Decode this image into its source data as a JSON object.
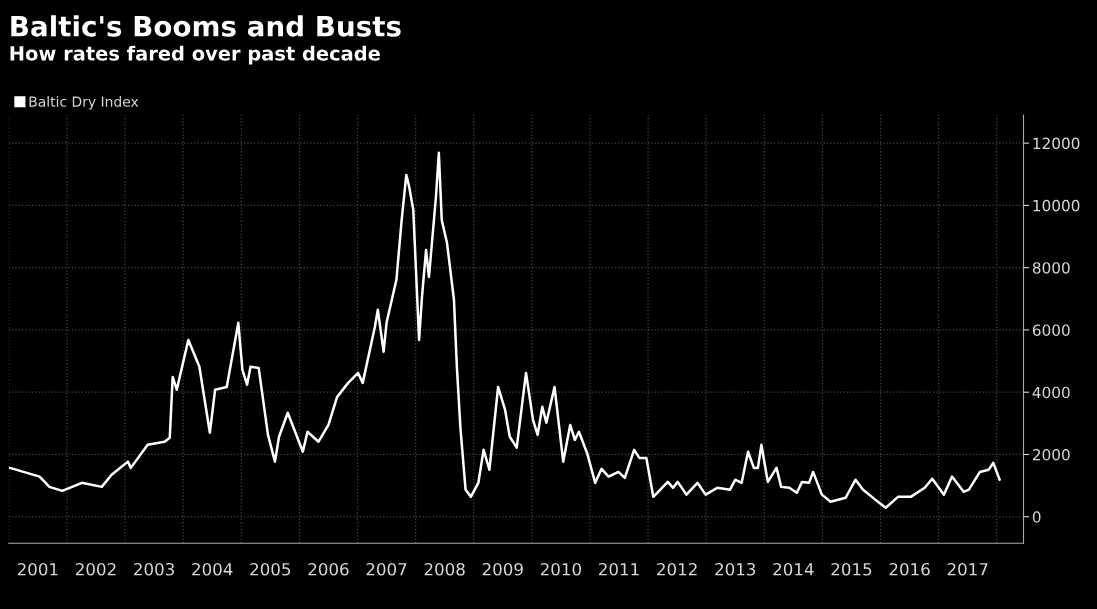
{
  "chart_data": {
    "type": "line",
    "title": "Baltic's Booms and Busts",
    "subtitle": "How rates fared over past decade",
    "x": [
      2001.02,
      2001.53,
      2001.7,
      2001.92,
      2002.26,
      2002.6,
      2002.77,
      2003.05,
      2003.1,
      2003.39,
      2003.68,
      2003.77,
      2003.82,
      2003.89,
      2004.09,
      2004.28,
      2004.46,
      2004.55,
      2004.75,
      2004.95,
      2005.02,
      2005.1,
      2005.16,
      2005.3,
      2005.46,
      2005.58,
      2005.65,
      2005.8,
      2006.06,
      2006.14,
      2006.33,
      2006.5,
      2006.65,
      2006.84,
      2007.01,
      2007.09,
      2007.3,
      2007.35,
      2007.45,
      2007.5,
      2007.67,
      2007.76,
      2007.84,
      2007.89,
      2007.96,
      2008.06,
      2008.11,
      2008.18,
      2008.23,
      2008.35,
      2008.4,
      2008.45,
      2008.54,
      2008.66,
      2008.71,
      2008.77,
      2008.86,
      2008.95,
      2009.08,
      2009.17,
      2009.27,
      2009.42,
      2009.54,
      2009.62,
      2009.74,
      2009.9,
      2010.02,
      2010.1,
      2010.18,
      2010.25,
      2010.39,
      2010.54,
      2010.66,
      2010.74,
      2010.81,
      2010.95,
      2011.09,
      2011.2,
      2011.32,
      2011.49,
      2011.6,
      2011.76,
      2011.85,
      2011.97,
      2012.09,
      2012.34,
      2012.43,
      2012.51,
      2012.66,
      2012.85,
      2012.99,
      2013.19,
      2013.41,
      2013.5,
      2013.61,
      2013.72,
      2013.82,
      2013.89,
      2013.95,
      2014.06,
      2014.21,
      2014.29,
      2014.43,
      2014.56,
      2014.65,
      2014.77,
      2014.84,
      2014.99,
      2015.14,
      2015.4,
      2015.57,
      2015.7,
      2015.91,
      2016.09,
      2016.3,
      2016.52,
      2016.76,
      2016.89,
      2017.09,
      2017.23,
      2017.43,
      2017.52,
      2017.71,
      2017.86,
      2017.94,
      2018.05
    ],
    "series": [
      {
        "name": "Baltic Dry Index",
        "color": "#ffffff",
        "values": [
          1570,
          1290,
          960,
          830,
          1090,
          960,
          1350,
          1770,
          1570,
          2310,
          2410,
          2540,
          4490,
          4080,
          5680,
          4820,
          2700,
          4080,
          4170,
          6230,
          4720,
          4240,
          4820,
          4780,
          2630,
          1770,
          2570,
          3340,
          2090,
          2730,
          2410,
          2950,
          3850,
          4300,
          4620,
          4300,
          6100,
          6650,
          5300,
          6230,
          7610,
          9530,
          10980,
          10590,
          9860,
          5680,
          7060,
          8570,
          7700,
          10270,
          11690,
          9530,
          8800,
          6970,
          4820,
          2890,
          870,
          640,
          1090,
          2150,
          1510,
          4170,
          3430,
          2570,
          2220,
          4620,
          3110,
          2630,
          3530,
          3020,
          4170,
          1770,
          2950,
          2470,
          2730,
          2050,
          1090,
          1540,
          1290,
          1440,
          1250,
          2150,
          1890,
          1890,
          640,
          1120,
          930,
          1120,
          710,
          1090,
          710,
          930,
          870,
          1190,
          1090,
          2090,
          1570,
          1570,
          2310,
          1120,
          1570,
          960,
          930,
          770,
          1120,
          1090,
          1440,
          710,
          480,
          610,
          1190,
          870,
          550,
          290,
          640,
          640,
          930,
          1220,
          710,
          1290,
          800,
          870,
          1440,
          1510,
          1730,
          1190
        ]
      }
    ],
    "xlim": [
      2001,
      2018.46
    ],
    "xticks": [
      {
        "value": 2001,
        "label": null
      },
      {
        "value": 2001.5,
        "label": "2001"
      },
      {
        "value": 2002,
        "label": null
      },
      {
        "value": 2002.5,
        "label": "2002"
      },
      {
        "value": 2003,
        "label": null
      },
      {
        "value": 2003.5,
        "label": "2003"
      },
      {
        "value": 2004,
        "label": null
      },
      {
        "value": 2004.5,
        "label": "2004"
      },
      {
        "value": 2005,
        "label": null
      },
      {
        "value": 2005.5,
        "label": "2005"
      },
      {
        "value": 2006,
        "label": null
      },
      {
        "value": 2006.5,
        "label": "2006"
      },
      {
        "value": 2007,
        "label": null
      },
      {
        "value": 2007.5,
        "label": "2007"
      },
      {
        "value": 2008,
        "label": null
      },
      {
        "value": 2008.5,
        "label": "2008"
      },
      {
        "value": 2009,
        "label": null
      },
      {
        "value": 2009.5,
        "label": "2009"
      },
      {
        "value": 2010,
        "label": null
      },
      {
        "value": 2010.5,
        "label": "2010"
      },
      {
        "value": 2011,
        "label": null
      },
      {
        "value": 2011.5,
        "label": "2011"
      },
      {
        "value": 2012,
        "label": null
      },
      {
        "value": 2012.5,
        "label": "2012"
      },
      {
        "value": 2013,
        "label": null
      },
      {
        "value": 2013.5,
        "label": "2013"
      },
      {
        "value": 2014,
        "label": null
      },
      {
        "value": 2014.5,
        "label": "2014"
      },
      {
        "value": 2015,
        "label": null
      },
      {
        "value": 2015.5,
        "label": "2015"
      },
      {
        "value": 2016,
        "label": null
      },
      {
        "value": 2016.5,
        "label": "2016"
      },
      {
        "value": 2017,
        "label": null
      },
      {
        "value": 2017.5,
        "label": "2017"
      },
      {
        "value": 2018,
        "label": null
      }
    ],
    "ylim": [
      -850,
      12900
    ],
    "yticks": [
      0,
      2000,
      4000,
      6000,
      8000,
      10000,
      12000
    ],
    "grid": true,
    "legend": "top left",
    "marker": "none",
    "line_style": "solid"
  }
}
